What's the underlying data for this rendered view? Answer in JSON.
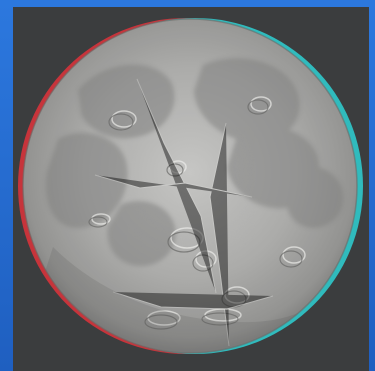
{
  "image": {
    "subject": "moon-anaglyph",
    "colors": {
      "frame_blue": "#1f5fc0",
      "background": "#3b3d3e",
      "red_fringe": "#d2363c",
      "cyan_fringe": "#2fc2c4",
      "lunar_gray": "#a7a7a5",
      "mare_gray": "#7c7c7a"
    }
  }
}
